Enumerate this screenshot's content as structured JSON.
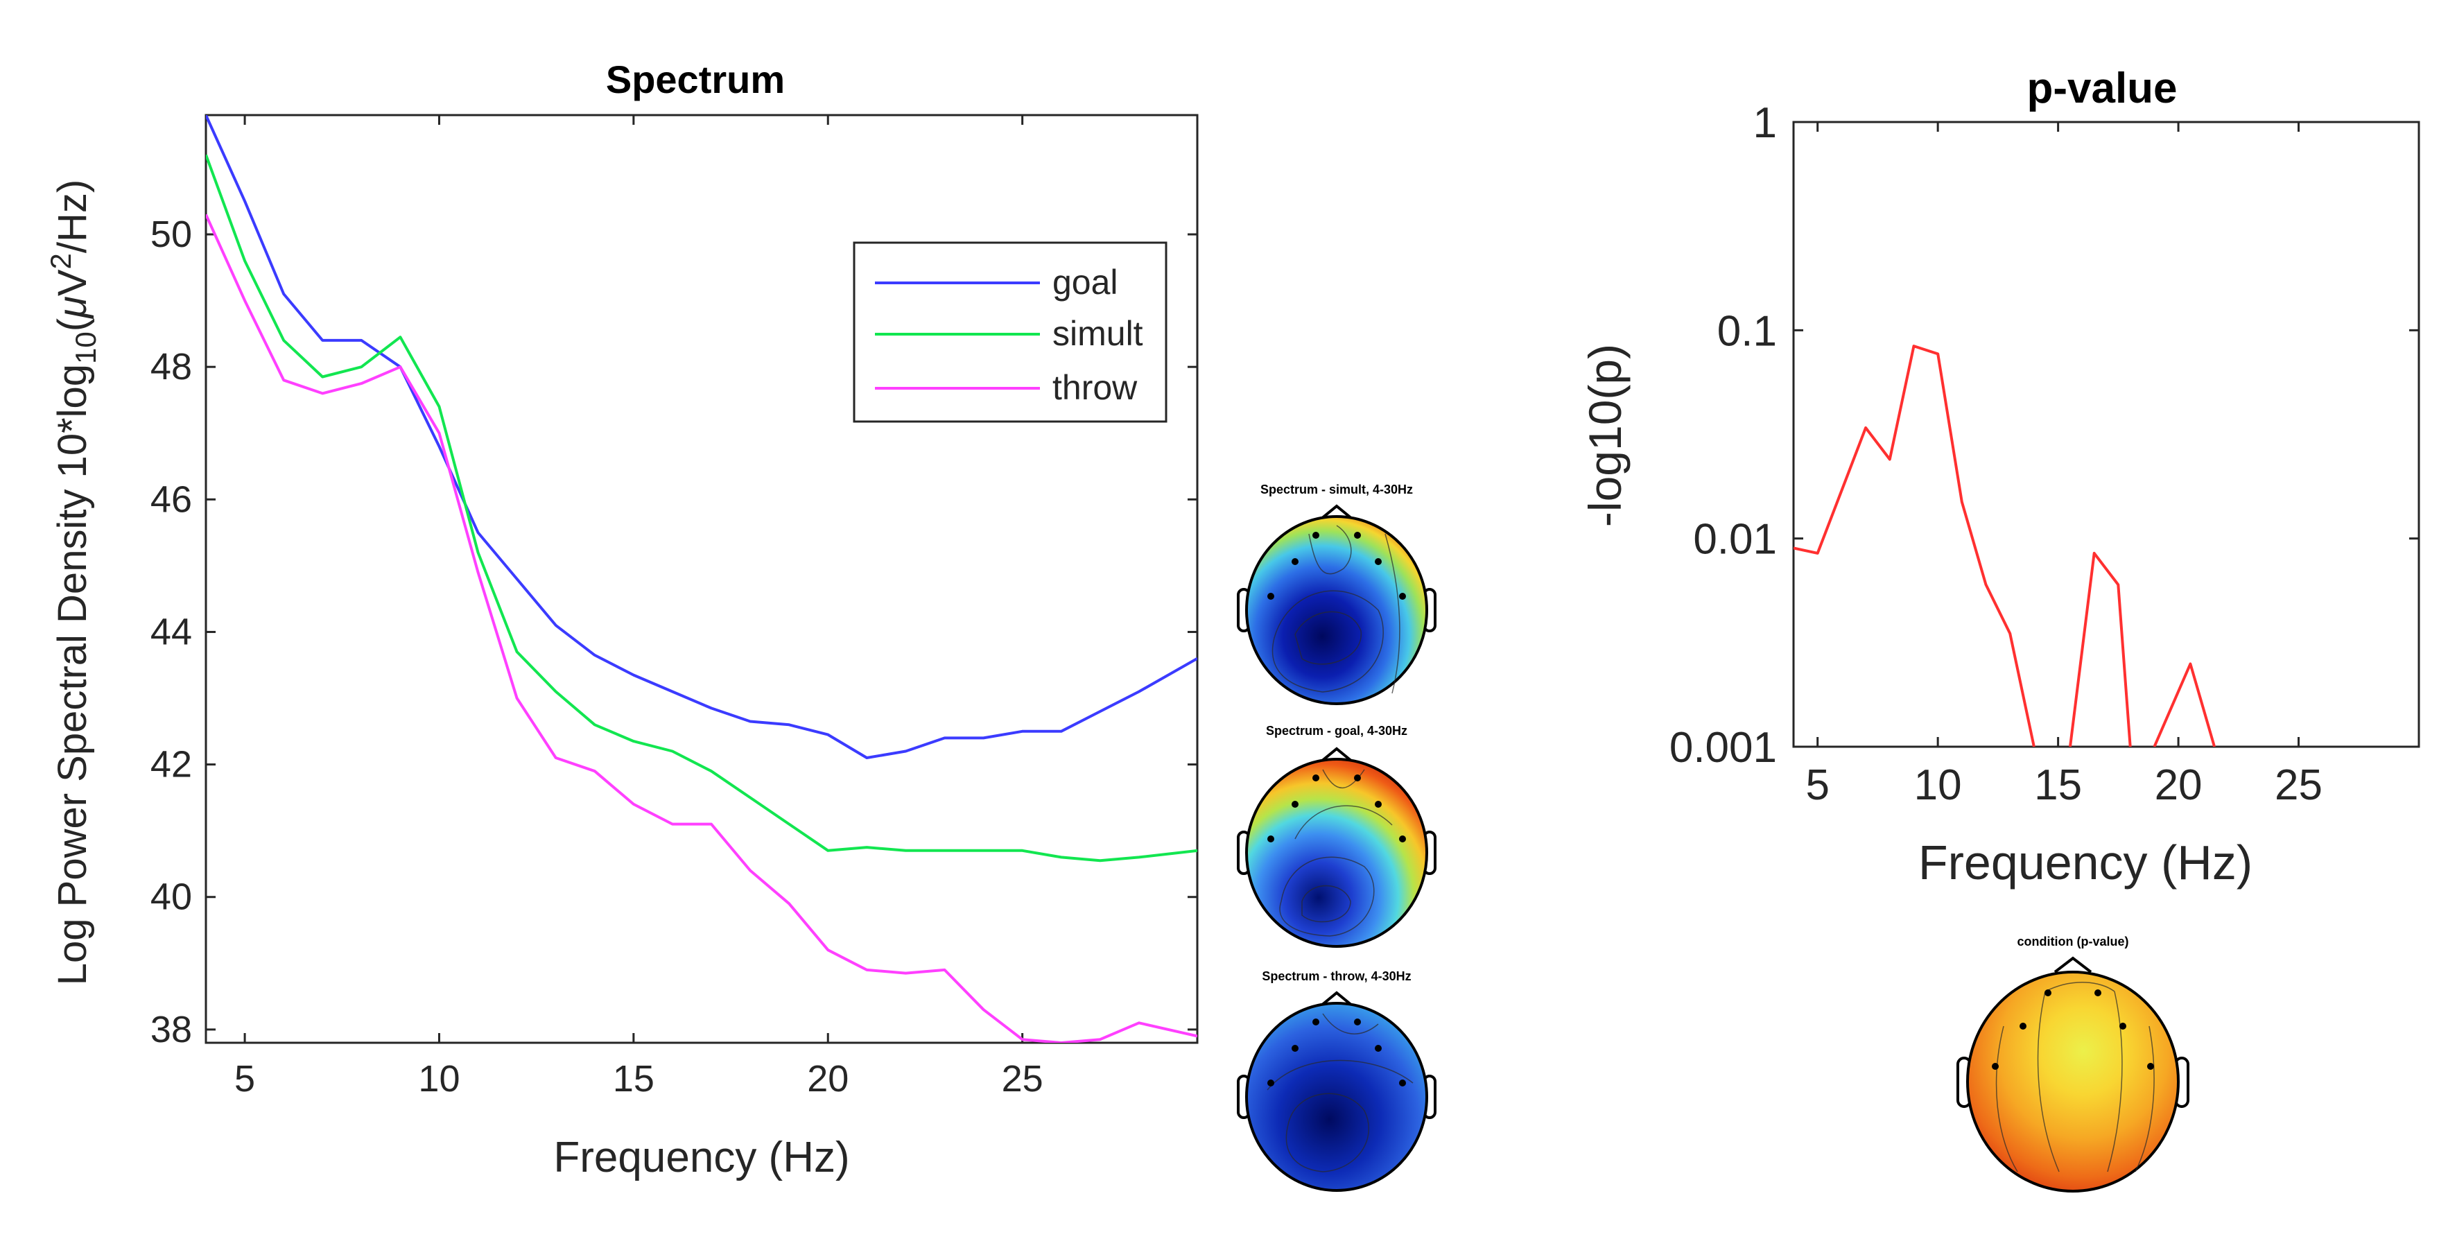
{
  "colors": {
    "goal": "#3b3bff",
    "simult": "#12e650",
    "throw": "#ff40ff",
    "pvalue": "#ff3030"
  },
  "chart_data": [
    {
      "type": "line",
      "title": "Spectrum",
      "xlabel": "Frequency (Hz)",
      "ylabel_prefix": "Log Power Spectral Density 10*log",
      "ylabel_sub": "10",
      "ylabel_unit_open": "(",
      "ylabel_mu": "μ",
      "ylabel_v": "V",
      "ylabel_sup": "2",
      "ylabel_tail": "/Hz)",
      "xlim": [
        4,
        29.5
      ],
      "ylim": [
        37.8,
        51.8
      ],
      "xticks": [
        5,
        10,
        15,
        20,
        25
      ],
      "yticks": [
        38,
        40,
        42,
        44,
        46,
        48,
        50
      ],
      "legend_position": "top-right",
      "x": [
        4,
        5,
        6,
        7,
        8,
        9,
        10,
        11,
        12,
        13,
        14,
        15,
        16,
        17,
        18,
        19,
        20,
        21,
        22,
        23,
        24,
        25,
        26,
        27,
        28,
        29.5
      ],
      "series": [
        {
          "name": "goal",
          "color_key": "goal",
          "values": [
            51.8,
            50.5,
            49.1,
            48.4,
            48.4,
            48.0,
            46.8,
            45.5,
            44.8,
            44.1,
            43.65,
            43.35,
            43.1,
            42.85,
            42.65,
            42.6,
            42.45,
            42.1,
            42.2,
            42.4,
            42.4,
            42.5,
            42.5,
            42.8,
            43.1,
            43.6
          ]
        },
        {
          "name": "simult",
          "color_key": "simult",
          "values": [
            51.2,
            49.6,
            48.4,
            47.85,
            48.0,
            48.45,
            47.4,
            45.2,
            43.7,
            43.1,
            42.6,
            42.35,
            42.2,
            41.9,
            41.5,
            41.1,
            40.7,
            40.75,
            40.7,
            40.7,
            40.7,
            40.7,
            40.6,
            40.55,
            40.6,
            40.7
          ]
        },
        {
          "name": "throw",
          "color_key": "throw",
          "values": [
            50.3,
            49.0,
            47.8,
            47.6,
            47.75,
            48.0,
            47.0,
            44.9,
            43.0,
            42.1,
            41.9,
            41.4,
            41.1,
            41.1,
            40.4,
            39.9,
            39.2,
            38.9,
            38.85,
            38.9,
            38.3,
            37.85,
            37.8,
            37.85,
            38.1,
            37.9
          ]
        }
      ]
    },
    {
      "type": "line",
      "title": "p-value",
      "xlabel": "Frequency (Hz)",
      "ylabel": "-log10(p)",
      "yscale": "log",
      "xlim": [
        4,
        30
      ],
      "ylim": [
        0.001,
        1
      ],
      "xticks": [
        5,
        10,
        15,
        20,
        25
      ],
      "yticks": [
        0.001,
        0.01,
        0.1,
        1
      ],
      "ytick_labels": [
        "0.001",
        "0.01",
        "0.1",
        "1"
      ],
      "series": [
        {
          "color_key": "pvalue",
          "segments": [
            {
              "x": [
                4,
                5,
                6,
                7,
                8,
                9,
                10,
                11,
                12,
                13,
                14
              ],
              "values": [
                0.009,
                0.0085,
                0.017,
                0.034,
                0.024,
                0.084,
                0.077,
                0.015,
                0.006,
                0.0035,
                0.001
              ]
            },
            {
              "x": [
                15.5,
                16.5,
                17.5,
                18
              ],
              "values": [
                0.001,
                0.0085,
                0.006,
                0.001
              ]
            },
            {
              "x": [
                19,
                20.5,
                21.5
              ],
              "values": [
                0.001,
                0.0025,
                0.001
              ]
            }
          ]
        }
      ]
    }
  ],
  "topoplots": [
    {
      "title": "Spectrum - simult, 4-30Hz",
      "scheme": "blue-center"
    },
    {
      "title": "Spectrum - goal, 4-30Hz",
      "scheme": "blue-lower"
    },
    {
      "title": "Spectrum - throw, 4-30Hz",
      "scheme": "blue-dominant"
    },
    {
      "title": "condition (p-value)",
      "scheme": "red-yellow"
    }
  ]
}
